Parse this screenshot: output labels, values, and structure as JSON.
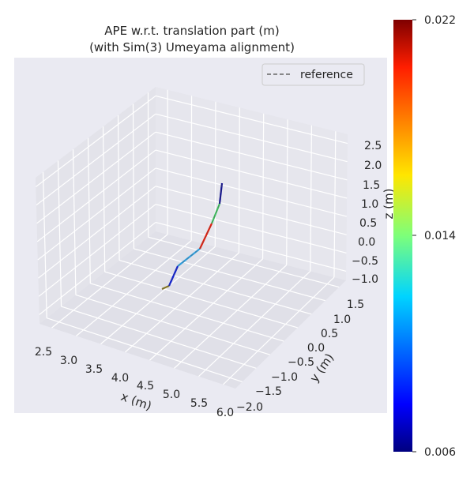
{
  "chart_data": {
    "type": "line3d",
    "title": "APE w.r.t. translation part (m)",
    "subtitle": "(with Sim(3) Umeyama alignment)",
    "xlabel": "x (m)",
    "ylabel": "y (m)",
    "zlabel": "z (m)",
    "x_ticks": [
      "2.5",
      "3.0",
      "3.5",
      "4.0",
      "4.5",
      "5.0",
      "5.5",
      "6.0"
    ],
    "y_ticks": [
      "1.5",
      "1.0",
      "0.5",
      "0.0",
      "−0.5",
      "−1.0",
      "−1.5",
      "−2.0"
    ],
    "z_ticks": [
      "2.5",
      "2.0",
      "1.5",
      "1.0",
      "0.5",
      "0.0",
      "−0.5",
      "−1.0"
    ],
    "legend": {
      "label": "reference",
      "placement": "top-right"
    },
    "colorbar": {
      "min": 0.006,
      "max": 0.022,
      "ticks": [
        "0.022",
        "0.014",
        "0.006"
      ],
      "colormap": "jet"
    },
    "trajectory_error_colors": [
      "#8a7a20",
      "#1020d0",
      "#30a0e0",
      "#e02010",
      "#40c060",
      "#101090",
      "#800000"
    ]
  }
}
